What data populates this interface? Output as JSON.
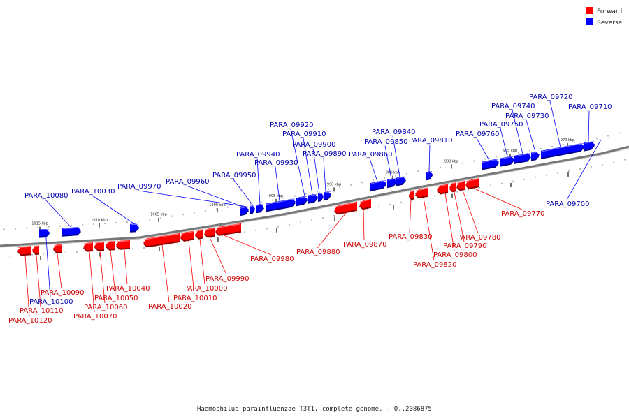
{
  "caption": "Haemophilus parainfluenzae T3T1, complete genome. - 0..2086875",
  "colors": {
    "forward": "#ff0000",
    "reverse": "#0000ff",
    "forward_label": "#cc0000",
    "reverse_label": "#0000aa",
    "backbone": "#777777"
  },
  "legend": [
    {
      "key": "forward",
      "label": "Forward"
    },
    {
      "key": "reverse",
      "label": "Reverse"
    }
  ],
  "ticks": [
    "970 kbp",
    "975 kbp",
    "980 kbp",
    "985 kbp",
    "990 kbp",
    "995 kbp",
    "1000 kbp",
    "1005 kbp",
    "1010 kbp",
    "1015 kbp"
  ],
  "genes": [
    {
      "id": "PARA_09700",
      "strand": "reverse"
    },
    {
      "id": "PARA_09710",
      "strand": "reverse"
    },
    {
      "id": "PARA_09720",
      "strand": "reverse"
    },
    {
      "id": "PARA_09730",
      "strand": "reverse"
    },
    {
      "id": "PARA_09740",
      "strand": "reverse"
    },
    {
      "id": "PARA_09750",
      "strand": "reverse"
    },
    {
      "id": "PARA_09760",
      "strand": "reverse"
    },
    {
      "id": "PARA_09770",
      "strand": "forward"
    },
    {
      "id": "PARA_09780",
      "strand": "forward"
    },
    {
      "id": "PARA_09790",
      "strand": "forward"
    },
    {
      "id": "PARA_09800",
      "strand": "forward"
    },
    {
      "id": "PARA_09810",
      "strand": "reverse"
    },
    {
      "id": "PARA_09820",
      "strand": "forward"
    },
    {
      "id": "PARA_09830",
      "strand": "forward"
    },
    {
      "id": "PARA_09840",
      "strand": "reverse"
    },
    {
      "id": "PARA_09850",
      "strand": "reverse"
    },
    {
      "id": "PARA_09860",
      "strand": "reverse"
    },
    {
      "id": "PARA_09870",
      "strand": "forward"
    },
    {
      "id": "PARA_09880",
      "strand": "forward"
    },
    {
      "id": "PARA_09890",
      "strand": "reverse"
    },
    {
      "id": "PARA_09900",
      "strand": "reverse"
    },
    {
      "id": "PARA_09910",
      "strand": "reverse"
    },
    {
      "id": "PARA_09920",
      "strand": "reverse"
    },
    {
      "id": "PARA_09930",
      "strand": "reverse"
    },
    {
      "id": "PARA_09940",
      "strand": "reverse"
    },
    {
      "id": "PARA_09950",
      "strand": "reverse"
    },
    {
      "id": "PARA_09960",
      "strand": "reverse"
    },
    {
      "id": "PARA_09970",
      "strand": "reverse"
    },
    {
      "id": "PARA_09980",
      "strand": "forward"
    },
    {
      "id": "PARA_09990",
      "strand": "forward"
    },
    {
      "id": "PARA_10000",
      "strand": "forward"
    },
    {
      "id": "PARA_10010",
      "strand": "forward"
    },
    {
      "id": "PARA_10020",
      "strand": "forward"
    },
    {
      "id": "PARA_10030",
      "strand": "reverse"
    },
    {
      "id": "PARA_10040",
      "strand": "forward"
    },
    {
      "id": "PARA_10050",
      "strand": "forward"
    },
    {
      "id": "PARA_10060",
      "strand": "forward"
    },
    {
      "id": "PARA_10070",
      "strand": "forward"
    },
    {
      "id": "PARA_10080",
      "strand": "reverse"
    },
    {
      "id": "PARA_10090",
      "strand": "forward"
    },
    {
      "id": "PARA_10100",
      "strand": "reverse"
    },
    {
      "id": "PARA_10110",
      "strand": "forward"
    },
    {
      "id": "PARA_10120",
      "strand": "forward"
    }
  ]
}
